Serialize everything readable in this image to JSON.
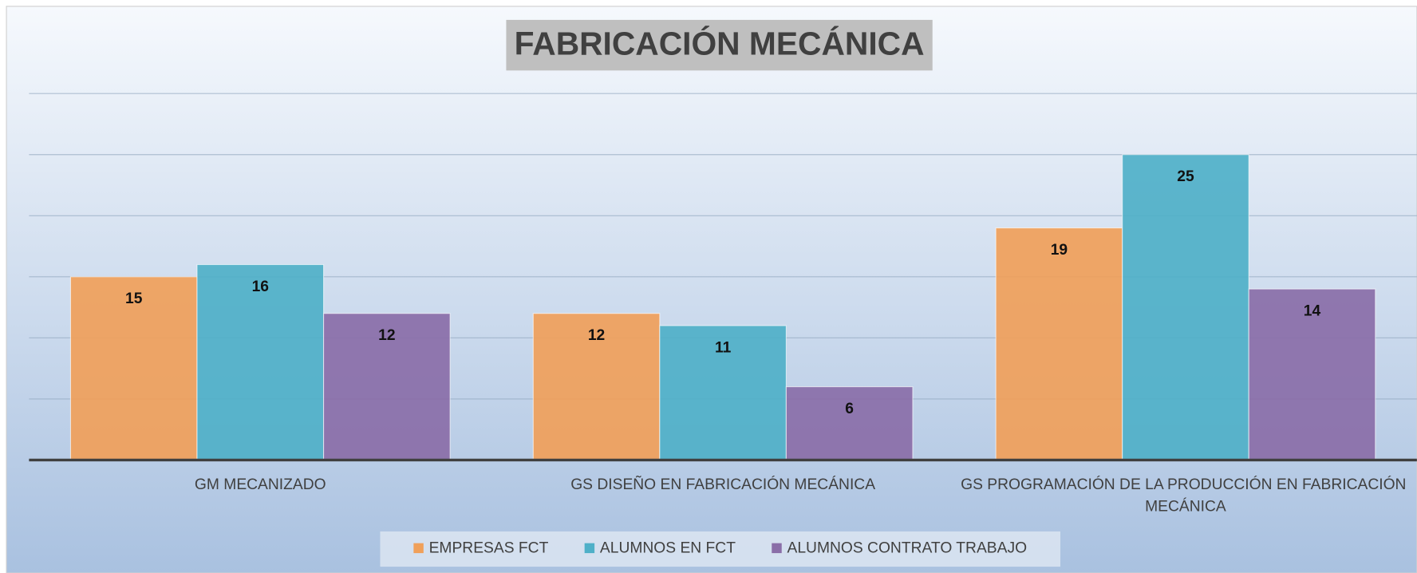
{
  "chart_data": {
    "type": "bar",
    "title": "FABRICACIÓN MECÁNICA",
    "categories": [
      "GM MECANIZADO",
      "GS DISEÑO EN FABRICACIÓN MECÁNICA",
      "GS PROGRAMACIÓN DE LA PRODUCCIÓN EN FABRICACIÓN MECÁNICA"
    ],
    "series": [
      {
        "name": "EMPRESAS FCT",
        "color": "#f0a05a",
        "values": [
          15,
          12,
          19
        ]
      },
      {
        "name": "ALUMNOS EN FCT",
        "color": "#4fb0c8",
        "values": [
          16,
          11,
          25
        ]
      },
      {
        "name": "ALUMNOS CONTRATO TRABAJO",
        "color": "#8a6ea8",
        "values": [
          12,
          6,
          14
        ]
      }
    ],
    "ylim": [
      0,
      30
    ],
    "yticks": [
      0,
      5,
      10,
      15,
      20,
      25,
      30
    ],
    "grid": true,
    "legend": "bottom"
  }
}
